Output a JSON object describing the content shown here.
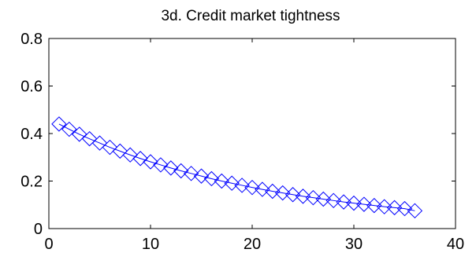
{
  "chart_data": {
    "type": "line",
    "title": "3d. Credit market tightness",
    "xlabel": "",
    "ylabel": "",
    "xlim": [
      0,
      40
    ],
    "ylim": [
      0,
      0.8
    ],
    "x_ticks": [
      0,
      10,
      20,
      30,
      40
    ],
    "y_ticks": [
      0,
      0.2,
      0.4,
      0.6,
      0.8
    ],
    "x_tick_labels": [
      "0",
      "10",
      "20",
      "30",
      "40"
    ],
    "y_tick_labels": [
      "0",
      "0.2",
      "0.4",
      "0.6",
      "0.8"
    ],
    "grid": false,
    "marker": "diamond",
    "series": [
      {
        "color": "#0000ff",
        "x": [
          1,
          2,
          3,
          4,
          5,
          6,
          7,
          8,
          9,
          10,
          11,
          12,
          13,
          14,
          15,
          16,
          17,
          18,
          19,
          20,
          21,
          22,
          23,
          24,
          25,
          26,
          27,
          28,
          29,
          30,
          31,
          32,
          33,
          34,
          35,
          36
        ],
        "values": [
          0.44,
          0.418,
          0.397,
          0.378,
          0.36,
          0.342,
          0.326,
          0.31,
          0.295,
          0.281,
          0.268,
          0.255,
          0.243,
          0.232,
          0.221,
          0.21,
          0.2,
          0.191,
          0.182,
          0.173,
          0.165,
          0.157,
          0.15,
          0.143,
          0.136,
          0.13,
          0.124,
          0.118,
          0.112,
          0.107,
          0.102,
          0.097,
          0.092,
          0.088,
          0.084,
          0.075
        ]
      }
    ]
  }
}
